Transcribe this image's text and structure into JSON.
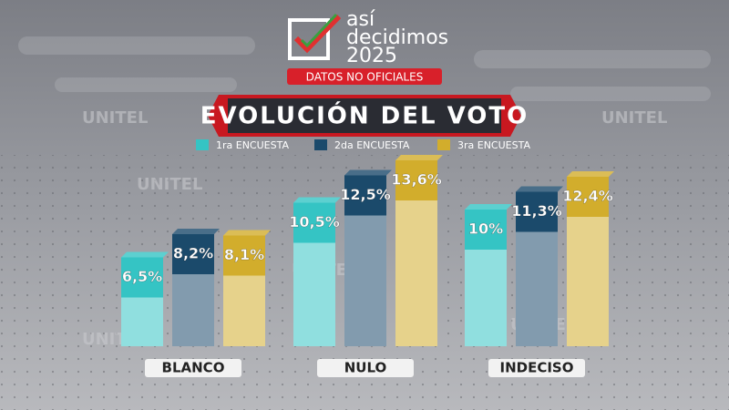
{
  "logo": {
    "line1": "así",
    "line2": "decidimos",
    "line3": "2025",
    "badge": "DATOS NO OFICIALES"
  },
  "watermark": "UNITEL",
  "chart_data": {
    "type": "bar",
    "title": "EVOLUCIÓN DEL VOTO",
    "categories": [
      "BLANCO",
      "NULO",
      "INDECISO"
    ],
    "series": [
      {
        "name": "1ra ENCUESTA",
        "color": "#35c4c4",
        "values": [
          6.5,
          10.5,
          10
        ],
        "value_labels": [
          "6,5%",
          "10,5%",
          "10%"
        ]
      },
      {
        "name": "2da ENCUESTA",
        "color": "#1b4a6b",
        "values": [
          8.2,
          12.5,
          11.3
        ],
        "value_labels": [
          "8,2%",
          "12,5%",
          "11,3%"
        ]
      },
      {
        "name": "3ra ENCUESTA",
        "color": "#d2ad2c",
        "values": [
          8.1,
          13.6,
          12.4
        ],
        "value_labels": [
          "8,1%",
          "13,6%",
          "12,4%"
        ]
      }
    ]
  }
}
